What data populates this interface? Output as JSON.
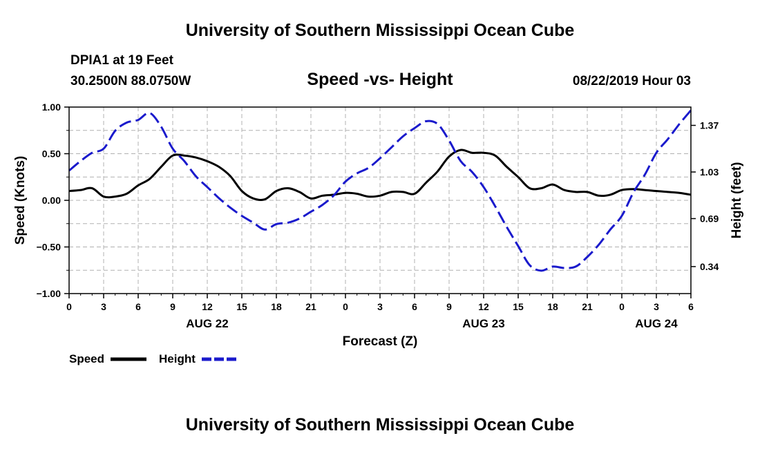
{
  "header": {
    "title_top": "University of Southern Mississippi Ocean Cube",
    "station": "DPIA1 at 19 Feet",
    "location": "30.2500N 88.0750W",
    "plot_title": "Speed -vs- Height",
    "datetime": "08/22/2019 Hour 03"
  },
  "footer": {
    "title_bottom": "University of Southern Mississippi Ocean Cube"
  },
  "chart_data": {
    "type": "line",
    "title": "Speed -vs- Height",
    "xlabel": "Forecast (Z)",
    "ylabel": "Speed (Knots)",
    "y2label": "Height (feet)",
    "x_range_hours": [
      0,
      54
    ],
    "ylim": [
      -1.0,
      1.0
    ],
    "y2lim": [
      0.1431,
      1.5035
    ],
    "x_ticks": [
      {
        "hour": 0,
        "label": "0"
      },
      {
        "hour": 3,
        "label": "3"
      },
      {
        "hour": 6,
        "label": "6"
      },
      {
        "hour": 9,
        "label": "9"
      },
      {
        "hour": 12,
        "label": "12"
      },
      {
        "hour": 15,
        "label": "15"
      },
      {
        "hour": 18,
        "label": "18"
      },
      {
        "hour": 21,
        "label": "21"
      },
      {
        "hour": 24,
        "label": "0"
      },
      {
        "hour": 27,
        "label": "3"
      },
      {
        "hour": 30,
        "label": "6"
      },
      {
        "hour": 33,
        "label": "9"
      },
      {
        "hour": 36,
        "label": "12"
      },
      {
        "hour": 39,
        "label": "15"
      },
      {
        "hour": 42,
        "label": "18"
      },
      {
        "hour": 45,
        "label": "21"
      },
      {
        "hour": 48,
        "label": "0"
      },
      {
        "hour": 51,
        "label": "3"
      },
      {
        "hour": 54,
        "label": "6"
      }
    ],
    "date_labels": [
      {
        "hour": 12,
        "label": "AUG 22"
      },
      {
        "hour": 36,
        "label": "AUG 23"
      },
      {
        "hour": 51,
        "label": "AUG 24"
      }
    ],
    "y_ticks": [
      {
        "value": 1.0,
        "label": "1.00"
      },
      {
        "value": 0.5,
        "label": "0.50"
      },
      {
        "value": 0.0,
        "label": "0.00"
      },
      {
        "value": -0.5,
        "label": "−0.50"
      },
      {
        "value": -1.0,
        "label": "−1.00"
      }
    ],
    "y2_ticks": [
      {
        "value": 1.37,
        "label": "1.37"
      },
      {
        "value": 1.03,
        "label": "1.03"
      },
      {
        "value": 0.69,
        "label": "0.69"
      },
      {
        "value": 0.34,
        "label": "0.34"
      }
    ],
    "legend": [
      {
        "name": "Speed",
        "color": "#000000",
        "style": "solid"
      },
      {
        "name": "Height",
        "color": "#1a1acc",
        "style": "dashed"
      }
    ],
    "series": [
      {
        "name": "Speed",
        "axis": "left",
        "color": "#000000",
        "x": [
          0,
          1,
          2,
          3,
          4,
          5,
          6,
          7,
          8,
          9,
          10,
          11,
          12,
          13,
          14,
          15,
          16,
          17,
          18,
          19,
          20,
          21,
          22,
          23,
          24,
          25,
          26,
          27,
          28,
          29,
          30,
          31,
          32,
          33,
          34,
          35,
          36,
          37,
          38,
          39,
          40,
          41,
          42,
          43,
          44,
          45,
          46,
          47,
          48,
          49,
          50,
          51,
          52,
          53,
          54
        ],
        "values": [
          0.1,
          0.11,
          0.13,
          0.04,
          0.04,
          0.07,
          0.16,
          0.23,
          0.36,
          0.48,
          0.48,
          0.46,
          0.42,
          0.36,
          0.26,
          0.1,
          0.02,
          0.01,
          0.1,
          0.13,
          0.09,
          0.02,
          0.05,
          0.06,
          0.08,
          0.07,
          0.04,
          0.05,
          0.09,
          0.09,
          0.07,
          0.19,
          0.31,
          0.47,
          0.54,
          0.51,
          0.51,
          0.48,
          0.36,
          0.25,
          0.13,
          0.13,
          0.17,
          0.11,
          0.09,
          0.09,
          0.05,
          0.06,
          0.11,
          0.12,
          0.11,
          0.1,
          0.09,
          0.08,
          0.06
        ]
      },
      {
        "name": "Height",
        "axis": "right",
        "color": "#1a1acc",
        "x": [
          0,
          1,
          2,
          3,
          4,
          5,
          6,
          7,
          8,
          9,
          10,
          11,
          12,
          13,
          14,
          15,
          16,
          17,
          18,
          19,
          20,
          21,
          22,
          23,
          24,
          25,
          26,
          27,
          28,
          29,
          30,
          31,
          32,
          33,
          34,
          35,
          36,
          37,
          38,
          39,
          40,
          41,
          42,
          43,
          44,
          45,
          46,
          47,
          48,
          49,
          50,
          51,
          52,
          53,
          54
        ],
        "values": [
          1.04,
          1.11,
          1.17,
          1.2,
          1.33,
          1.39,
          1.41,
          1.46,
          1.36,
          1.2,
          1.11,
          1.0,
          0.92,
          0.84,
          0.77,
          0.71,
          0.66,
          0.61,
          0.65,
          0.66,
          0.69,
          0.74,
          0.79,
          0.86,
          0.96,
          1.02,
          1.06,
          1.13,
          1.21,
          1.29,
          1.35,
          1.4,
          1.38,
          1.26,
          1.11,
          1.03,
          0.92,
          0.78,
          0.63,
          0.49,
          0.35,
          0.31,
          0.34,
          0.33,
          0.34,
          0.41,
          0.5,
          0.61,
          0.71,
          0.88,
          1.01,
          1.17,
          1.27,
          1.38,
          1.48
        ]
      }
    ]
  }
}
